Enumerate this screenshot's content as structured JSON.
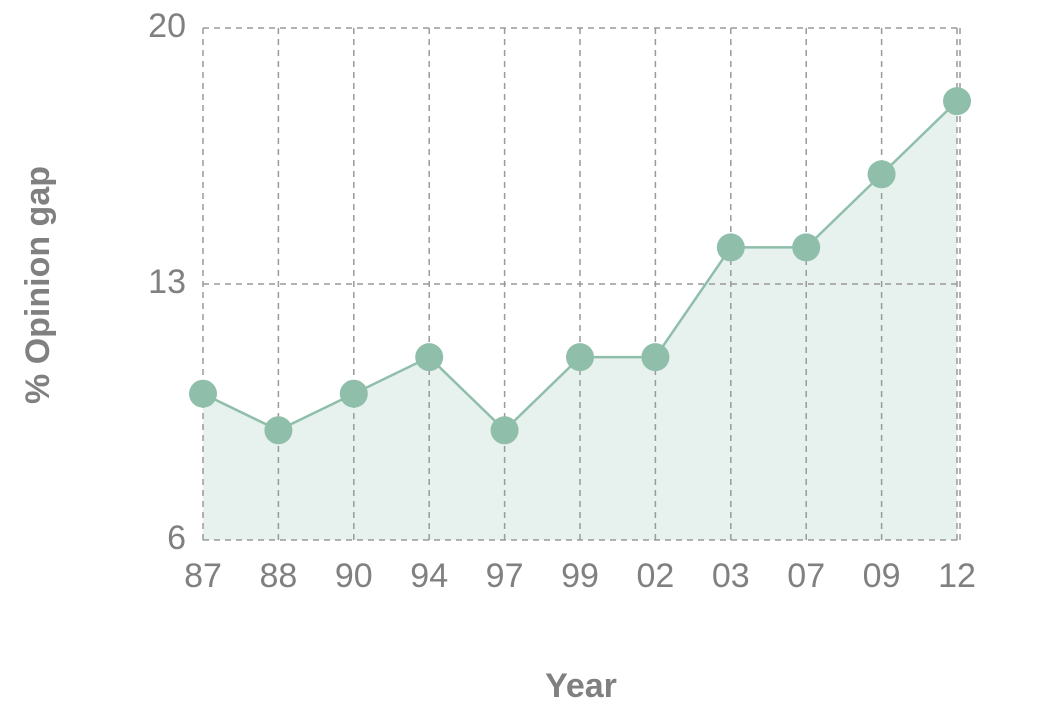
{
  "chart_data": {
    "type": "line",
    "x_label": "Year",
    "y_label": "% Opinion gap",
    "categories": [
      "87",
      "88",
      "90",
      "94",
      "97",
      "99",
      "02",
      "03",
      "07",
      "09",
      "12"
    ],
    "values": [
      10,
      9,
      10,
      11,
      9,
      11,
      11,
      14,
      14,
      16,
      18
    ],
    "color": "#8fbfaa",
    "area_color": "#e7f1ed",
    "ylim": [
      6,
      20
    ],
    "yticks": [
      6,
      13,
      20
    ],
    "grid": true
  }
}
